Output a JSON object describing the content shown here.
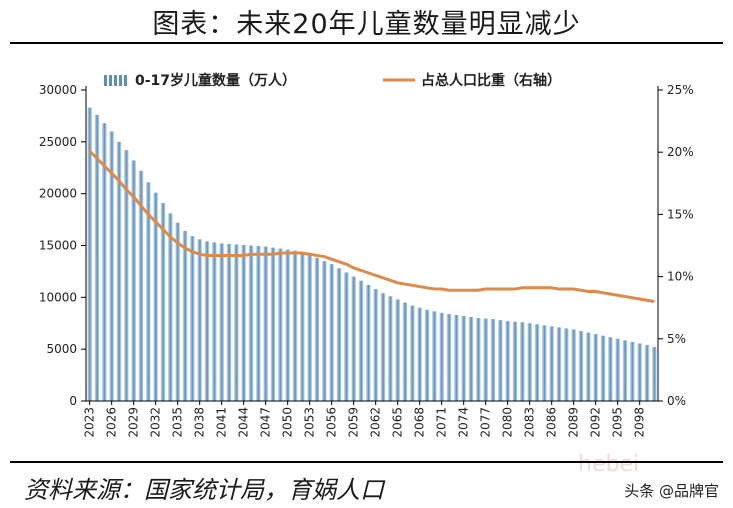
{
  "title": "图表：未来20年儿童数量明显减少",
  "source": "资料来源：国家统计局，育娲人口",
  "watermark": "头条 @品牌官",
  "bg_mark": "hebei",
  "colors": {
    "bar": "#5b8fb9",
    "bar_light": "#cfe0ee",
    "line": "#e08a4a",
    "axis": "#000000"
  },
  "chart_data": {
    "type": "bar+line",
    "title": "图表：未来20年儿童数量明显减少",
    "legend": [
      "0-17岁儿童数量（万人）",
      "占总人口比重（右轴）"
    ],
    "legend_position": "top",
    "x": [
      2023,
      2024,
      2025,
      2026,
      2027,
      2028,
      2029,
      2030,
      2031,
      2032,
      2033,
      2034,
      2035,
      2036,
      2037,
      2038,
      2039,
      2040,
      2041,
      2042,
      2043,
      2044,
      2045,
      2046,
      2047,
      2048,
      2049,
      2050,
      2051,
      2052,
      2053,
      2054,
      2055,
      2056,
      2057,
      2058,
      2059,
      2060,
      2061,
      2062,
      2063,
      2064,
      2065,
      2066,
      2067,
      2068,
      2069,
      2070,
      2071,
      2072,
      2073,
      2074,
      2075,
      2076,
      2077,
      2078,
      2079,
      2080,
      2081,
      2082,
      2083,
      2084,
      2085,
      2086,
      2087,
      2088,
      2089,
      2090,
      2091,
      2092,
      2093,
      2094,
      2095,
      2096,
      2097,
      2098,
      2099,
      2100
    ],
    "x_tick_labels": [
      "2023",
      "2026",
      "2029",
      "2032",
      "2035",
      "2038",
      "2041",
      "2044",
      "2047",
      "2050",
      "2053",
      "2056",
      "2059",
      "2062",
      "2065",
      "2068",
      "2071",
      "2074",
      "2077",
      "2080",
      "2083",
      "2086",
      "2089",
      "2092",
      "2095",
      "2098"
    ],
    "series": [
      {
        "name": "0-17岁儿童数量（万人）",
        "axis": "left",
        "type": "bar",
        "values": [
          28300,
          27600,
          26800,
          26000,
          25000,
          24200,
          23200,
          22200,
          21100,
          20100,
          19100,
          18100,
          17200,
          16400,
          15900,
          15600,
          15400,
          15300,
          15200,
          15150,
          15100,
          15050,
          15000,
          14950,
          14900,
          14800,
          14700,
          14600,
          14500,
          14300,
          14100,
          13800,
          13500,
          13200,
          12800,
          12400,
          12000,
          11600,
          11200,
          10800,
          10400,
          10100,
          9800,
          9500,
          9200,
          9000,
          8800,
          8650,
          8500,
          8400,
          8300,
          8200,
          8100,
          8000,
          7950,
          7900,
          7800,
          7700,
          7650,
          7600,
          7500,
          7400,
          7300,
          7200,
          7100,
          7000,
          6900,
          6750,
          6600,
          6450,
          6300,
          6150,
          6000,
          5850,
          5700,
          5550,
          5400,
          5200
        ]
      },
      {
        "name": "占总人口比重（右轴）",
        "axis": "right",
        "type": "line",
        "unit": "%",
        "values": [
          20.1,
          19.5,
          18.9,
          18.3,
          17.7,
          17.0,
          16.4,
          15.7,
          15.0,
          14.4,
          13.8,
          13.2,
          12.7,
          12.3,
          12.0,
          11.8,
          11.7,
          11.7,
          11.7,
          11.7,
          11.7,
          11.7,
          11.8,
          11.8,
          11.8,
          11.8,
          11.9,
          11.9,
          11.9,
          11.9,
          11.8,
          11.7,
          11.6,
          11.4,
          11.2,
          11.0,
          10.7,
          10.5,
          10.3,
          10.1,
          9.9,
          9.7,
          9.5,
          9.4,
          9.3,
          9.2,
          9.1,
          9.0,
          9.0,
          8.9,
          8.9,
          8.9,
          8.9,
          8.9,
          9.0,
          9.0,
          9.0,
          9.0,
          9.0,
          9.1,
          9.1,
          9.1,
          9.1,
          9.1,
          9.0,
          9.0,
          9.0,
          8.9,
          8.8,
          8.8,
          8.7,
          8.6,
          8.5,
          8.4,
          8.3,
          8.2,
          8.1,
          8.0
        ]
      }
    ],
    "y_left": {
      "min": 0,
      "max": 30000,
      "ticks": [
        "0",
        "5000",
        "10000",
        "15000",
        "20000",
        "25000",
        "30000"
      ]
    },
    "y_right": {
      "min": 0,
      "max": 25,
      "ticks": [
        "0%",
        "5%",
        "10%",
        "15%",
        "20%",
        "25%"
      ]
    },
    "grid": false
  }
}
